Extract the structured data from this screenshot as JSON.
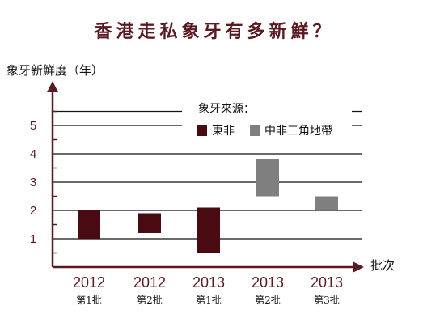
{
  "colors": {
    "east_africa": "#4a0a12",
    "central_africa": "#7f7f7f",
    "axis": "#5a1a22",
    "title": "#5a1a22",
    "grid": "#111111"
  },
  "chart_data": {
    "type": "bar",
    "subtype": "floating-range",
    "title": "香港走私象牙有多新鮮？",
    "ylabel": "象牙新鮮度（年）",
    "xlabel": "批次",
    "ylim": [
      0,
      6
    ],
    "yticks": [
      "1",
      "2",
      "3",
      "4",
      "5"
    ],
    "grid": true,
    "legend": {
      "title": "象牙來源：",
      "position": "top-right",
      "entries": [
        "東非",
        "中非三角地帶"
      ]
    },
    "categories": [
      {
        "year": "2012",
        "batch": "第1批"
      },
      {
        "year": "2012",
        "batch": "第2批"
      },
      {
        "year": "2013",
        "batch": "第1批"
      },
      {
        "year": "2013",
        "batch": "第2批"
      },
      {
        "year": "2013",
        "batch": "第3批"
      }
    ],
    "bars": [
      {
        "source": "東非",
        "low": 1.0,
        "high": 2.0
      },
      {
        "source": "東非",
        "low": 1.2,
        "high": 1.9
      },
      {
        "source": "東非",
        "low": 0.5,
        "high": 2.1
      },
      {
        "source": "中非三角地帶",
        "low": 2.5,
        "high": 3.8
      },
      {
        "source": "中非三角地帶",
        "low": 2.0,
        "high": 2.5
      }
    ]
  }
}
